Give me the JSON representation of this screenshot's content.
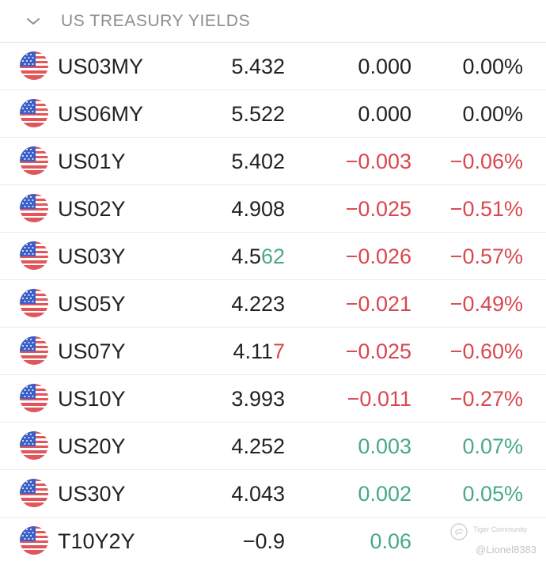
{
  "section": {
    "title": "US TREASURY YIELDS",
    "collapse_icon": "chevron-down-icon"
  },
  "rows": [
    {
      "symbol": "US03MY",
      "price_a": "5.432",
      "price_b": "",
      "price_flash": "",
      "change": "0.000",
      "change_pct": "0.00%",
      "trend": "flat"
    },
    {
      "symbol": "US06MY",
      "price_a": "5.522",
      "price_b": "",
      "price_flash": "",
      "change": "0.000",
      "change_pct": "0.00%",
      "trend": "flat"
    },
    {
      "symbol": "US01Y",
      "price_a": "5.402",
      "price_b": "",
      "price_flash": "",
      "change": "−0.003",
      "change_pct": "−0.06%",
      "trend": "down"
    },
    {
      "symbol": "US02Y",
      "price_a": "4.908",
      "price_b": "",
      "price_flash": "",
      "change": "−0.025",
      "change_pct": "−0.51%",
      "trend": "down"
    },
    {
      "symbol": "US03Y",
      "price_a": "4.5",
      "price_b": "62",
      "price_flash": "up",
      "change": "−0.026",
      "change_pct": "−0.57%",
      "trend": "down"
    },
    {
      "symbol": "US05Y",
      "price_a": "4.223",
      "price_b": "",
      "price_flash": "",
      "change": "−0.021",
      "change_pct": "−0.49%",
      "trend": "down"
    },
    {
      "symbol": "US07Y",
      "price_a": "4.11",
      "price_b": "7",
      "price_flash": "down",
      "change": "−0.025",
      "change_pct": "−0.60%",
      "trend": "down"
    },
    {
      "symbol": "US10Y",
      "price_a": "3.993",
      "price_b": "",
      "price_flash": "",
      "change": "−0.011",
      "change_pct": "−0.27%",
      "trend": "down"
    },
    {
      "symbol": "US20Y",
      "price_a": "4.252",
      "price_b": "",
      "price_flash": "",
      "change": "0.003",
      "change_pct": "0.07%",
      "trend": "up"
    },
    {
      "symbol": "US30Y",
      "price_a": "4.043",
      "price_b": "",
      "price_flash": "",
      "change": "0.002",
      "change_pct": "0.05%",
      "trend": "up"
    },
    {
      "symbol": "T10Y2Y",
      "price_a": "−0.9",
      "price_b": "",
      "price_flash": "",
      "change": "0.06",
      "change_pct": "",
      "trend": "up"
    }
  ],
  "flag_icon": "us-flag-icon",
  "colors": {
    "negative": "#d9474f",
    "positive": "#47a88a",
    "neutral": "#1f2126",
    "header_text": "#8a8d93"
  },
  "watermark": {
    "brand": "Tiger Community",
    "user": "@Lionel8383"
  }
}
